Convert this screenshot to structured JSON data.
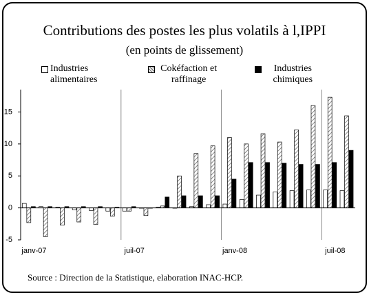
{
  "chart_data": {
    "type": "bar",
    "title": "Contributions des postes les plus volatils à l,IPPI",
    "subtitle": "(en points de glissement)",
    "source": "Source : Direction de la Statistique, elaboration INAC-HCP.",
    "categories": [
      "janv-07",
      null,
      null,
      null,
      null,
      null,
      "juil-07",
      null,
      null,
      null,
      null,
      null,
      "janv-08",
      null,
      null,
      null,
      null,
      null,
      "juil-08",
      null
    ],
    "series": [
      {
        "name": "Industries alimentaires",
        "color": "#ffffff",
        "values": [
          0.7,
          0.2,
          0.1,
          -0.3,
          -0.4,
          -0.5,
          -0.5,
          0,
          0.1,
          0,
          0.2,
          0.5,
          0.6,
          1.3,
          2,
          2.5,
          2.7,
          2.8,
          2.8,
          2.7
        ]
      },
      {
        "name": "Cokéfaction et raffinage",
        "color": "#999999",
        "hatch": true,
        "values": [
          -2.3,
          -4.5,
          -2.7,
          -2.2,
          -2.6,
          -1.3,
          -0.5,
          -1.2,
          0.3,
          5,
          8.5,
          9.7,
          11,
          10,
          11.6,
          10.3,
          12.2,
          16,
          17.3,
          14.4
        ]
      },
      {
        "name": "Industries chimiques",
        "color": "#000000",
        "values": [
          0.2,
          0.2,
          0.2,
          0.2,
          0.2,
          0.1,
          0.2,
          0,
          1.7,
          1.9,
          1.9,
          1.9,
          4.5,
          7.1,
          7.1,
          7,
          6.8,
          6.8,
          7.1,
          9
        ]
      }
    ],
    "ylim": [
      -5,
      18.5
    ],
    "yticks": [
      -5,
      0,
      5,
      10,
      15
    ],
    "grid": false
  }
}
